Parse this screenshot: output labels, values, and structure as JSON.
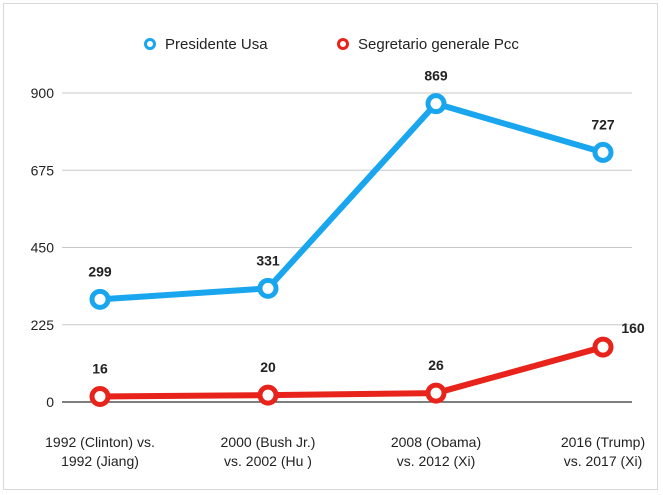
{
  "chart_data": {
    "type": "line",
    "categories": [
      [
        "1992 (Clinton) vs.",
        "1992 (Jiang)"
      ],
      [
        "2000 (Bush Jr.)",
        "vs. 2002 (Hu )"
      ],
      [
        "2008 (Obama)",
        "vs. 2012 (Xi)"
      ],
      [
        "2016 (Trump)",
        "vs. 2017 (Xi)"
      ]
    ],
    "yticks": [
      "0",
      "225",
      "450",
      "675",
      "900"
    ],
    "ylim": [
      0,
      900
    ],
    "grid": true,
    "legend_position": "top",
    "series": [
      {
        "name": "Presidente Usa",
        "color": "#1aa6ef",
        "values": [
          299,
          331,
          869,
          727
        ]
      },
      {
        "name": "Segretario generale Pcc",
        "color": "#e8231b",
        "values": [
          16,
          20,
          26,
          160
        ]
      }
    ]
  }
}
